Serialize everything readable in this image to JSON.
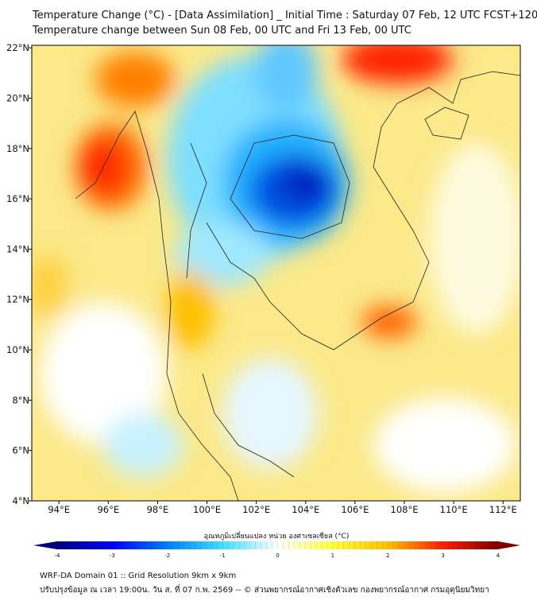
{
  "title": {
    "line1": "Temperature Change (°C) - [Data Assimilation] _ Initial Time : Saturday 07 Feb, 12 UTC FCST+120",
    "line2": "Temperature change between Sun 08 Feb, 00 UTC and Fri 13 Feb, 00 UTC"
  },
  "axes": {
    "lon_labels": [
      "94°E",
      "96°E",
      "98°E",
      "100°E",
      "102°E",
      "104°E",
      "106°E",
      "108°E",
      "110°E",
      "112°E"
    ],
    "lon_values": [
      94,
      96,
      98,
      100,
      102,
      104,
      106,
      108,
      110,
      112
    ],
    "lat_labels": [
      "22°N",
      "20°N",
      "18°N",
      "16°N",
      "14°N",
      "12°N",
      "10°N",
      "8°N",
      "6°N",
      "4°N"
    ],
    "lat_values": [
      22,
      20,
      18,
      16,
      14,
      12,
      10,
      8,
      6,
      4
    ],
    "lon_range": [
      92.9,
      112.7
    ],
    "lat_range": [
      4,
      22.1
    ]
  },
  "colorbar": {
    "title": "อุณหภูมิเปลี่ยนแปลง หน่วย องศาเซลเซียส (°C)",
    "ticks": [
      "-4",
      "-3",
      "-2",
      "-1",
      "0",
      "1",
      "2",
      "3",
      "4"
    ],
    "tick_values": [
      -4,
      -3,
      -2,
      -1,
      0,
      1,
      2,
      3,
      4
    ],
    "colors": [
      "#00007f",
      "#0000ff",
      "#0080ff",
      "#40e0ff",
      "#ffffff",
      "#ffff40",
      "#ffc000",
      "#ff2000",
      "#7f0000"
    ]
  },
  "footer": {
    "line1": "WRF-DA Domain 01 :: Grid Resolution 9km x 9km",
    "line2": "ปรับปรุงข้อมูล ณ เวลา 19:00น. วัน ส. ที่ 07 ก.พ. 2569 -- © ส่วนพยากรณ์อากาศเชิงตัวเลข กองพยากรณ์อากาศ กรมอุตุนิยมวิทยา"
  }
}
